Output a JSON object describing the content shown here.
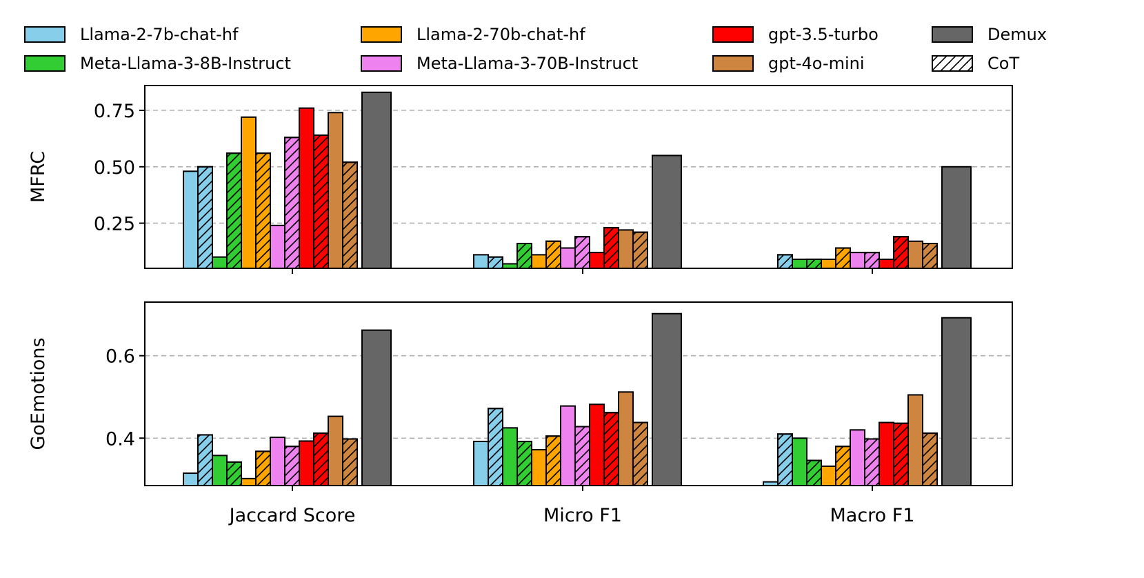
{
  "chart_data": {
    "type": "bar",
    "categories": [
      "Jaccard Score",
      "Micro F1",
      "Macro F1"
    ],
    "series": [
      {
        "name": "Llama-2-7b-chat-hf",
        "color": "#87ceeb",
        "hatch": false
      },
      {
        "name": "Llama-2-7b-chat-hf + CoT",
        "color": "#87ceeb",
        "hatch": true
      },
      {
        "name": "Meta-Llama-3-8B-Instruct",
        "color": "#32cd32",
        "hatch": false
      },
      {
        "name": "Meta-Llama-3-8B-Instruct + CoT",
        "color": "#32cd32",
        "hatch": true
      },
      {
        "name": "Llama-2-70b-chat-hf",
        "color": "#ffa500",
        "hatch": false
      },
      {
        "name": "Llama-2-70b-chat-hf + CoT",
        "color": "#ffa500",
        "hatch": true
      },
      {
        "name": "Meta-Llama-3-70B-Instruct",
        "color": "#ee82ee",
        "hatch": false
      },
      {
        "name": "Meta-Llama-3-70B-Instruct + CoT",
        "color": "#ee82ee",
        "hatch": true
      },
      {
        "name": "gpt-3.5-turbo",
        "color": "#ff0000",
        "hatch": false
      },
      {
        "name": "gpt-3.5-turbo + CoT",
        "color": "#ff0000",
        "hatch": true
      },
      {
        "name": "gpt-4o-mini",
        "color": "#cd853f",
        "hatch": false
      },
      {
        "name": "gpt-4o-mini + CoT",
        "color": "#cd853f",
        "hatch": true
      },
      {
        "name": "Demux",
        "color": "#666666",
        "hatch": false,
        "wide": true
      }
    ],
    "panels": [
      {
        "ylabel": "MFRC",
        "ylim": [
          0.05,
          0.86
        ],
        "yticks": [
          0.25,
          0.5,
          0.75
        ],
        "ytick_labels": [
          "0.25",
          "0.50",
          "0.75"
        ],
        "values": [
          [
            0.48,
            0.5,
            0.1,
            0.56,
            0.72,
            0.56,
            0.24,
            0.63,
            0.76,
            0.64,
            0.74,
            0.52,
            0.83
          ],
          [
            0.11,
            0.1,
            0.07,
            0.16,
            0.11,
            0.17,
            0.14,
            0.19,
            0.12,
            0.23,
            0.22,
            0.21,
            0.55
          ],
          [
            0.05,
            0.11,
            0.09,
            0.09,
            0.09,
            0.14,
            0.12,
            0.12,
            0.09,
            0.19,
            0.17,
            0.16,
            0.5
          ]
        ]
      },
      {
        "ylabel": "GoEmotions",
        "ylim": [
          0.285,
          0.73
        ],
        "yticks": [
          0.4,
          0.6
        ],
        "ytick_labels": [
          "0.4",
          "0.6"
        ],
        "values": [
          [
            0.315,
            0.408,
            0.358,
            0.342,
            0.302,
            0.368,
            0.402,
            0.38,
            0.393,
            0.412,
            0.453,
            0.398,
            0.662
          ],
          [
            0.392,
            0.472,
            0.425,
            0.392,
            0.372,
            0.405,
            0.478,
            0.428,
            0.482,
            0.462,
            0.512,
            0.438,
            0.702
          ],
          [
            0.294,
            0.41,
            0.4,
            0.346,
            0.332,
            0.38,
            0.42,
            0.398,
            0.438,
            0.436,
            0.505,
            0.412,
            0.692
          ]
        ]
      }
    ],
    "legend": {
      "placement": "top",
      "entries": [
        {
          "label": "Llama-2-7b-chat-hf",
          "color": "#87ceeb",
          "hatch": false
        },
        {
          "label": "Llama-2-70b-chat-hf",
          "color": "#ffa500",
          "hatch": false
        },
        {
          "label": "gpt-3.5-turbo",
          "color": "#ff0000",
          "hatch": false
        },
        {
          "label": "Demux",
          "color": "#666666",
          "hatch": false
        },
        {
          "label": "Meta-Llama-3-8B-Instruct",
          "color": "#32cd32",
          "hatch": false
        },
        {
          "label": "Meta-Llama-3-70B-Instruct",
          "color": "#ee82ee",
          "hatch": false
        },
        {
          "label": "gpt-4o-mini",
          "color": "#cd853f",
          "hatch": false
        },
        {
          "label": "CoT",
          "color": "#ffffff",
          "hatch": true
        }
      ]
    },
    "grid": "y-dashed"
  }
}
